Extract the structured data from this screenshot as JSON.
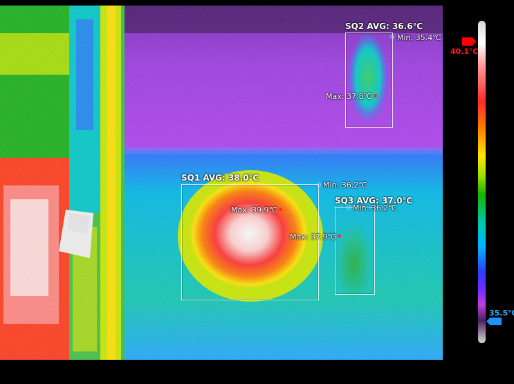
{
  "measurements": [
    {
      "id": "SQ1",
      "title": "SQ1 AVG: 38.0℃",
      "min_label": "Min: 36.2℃",
      "max_label": "Max: 39.9℃"
    },
    {
      "id": "SQ2",
      "title": "SQ2 AVG: 36.6℃",
      "min_label": "Min: 35.4℃",
      "max_label": "Max: 37.8℃"
    },
    {
      "id": "SQ3",
      "title": "SQ3 AVG: 37.0℃",
      "min_label": "Min: 36.2℃",
      "max_label": "Max: 37.9℃"
    }
  ],
  "scale": {
    "max_label": "40.1℃",
    "min_label": "35.5℃",
    "max_color": "#ff0000",
    "min_color": "#1e90ff"
  },
  "palette": "ironbow-rainbow"
}
